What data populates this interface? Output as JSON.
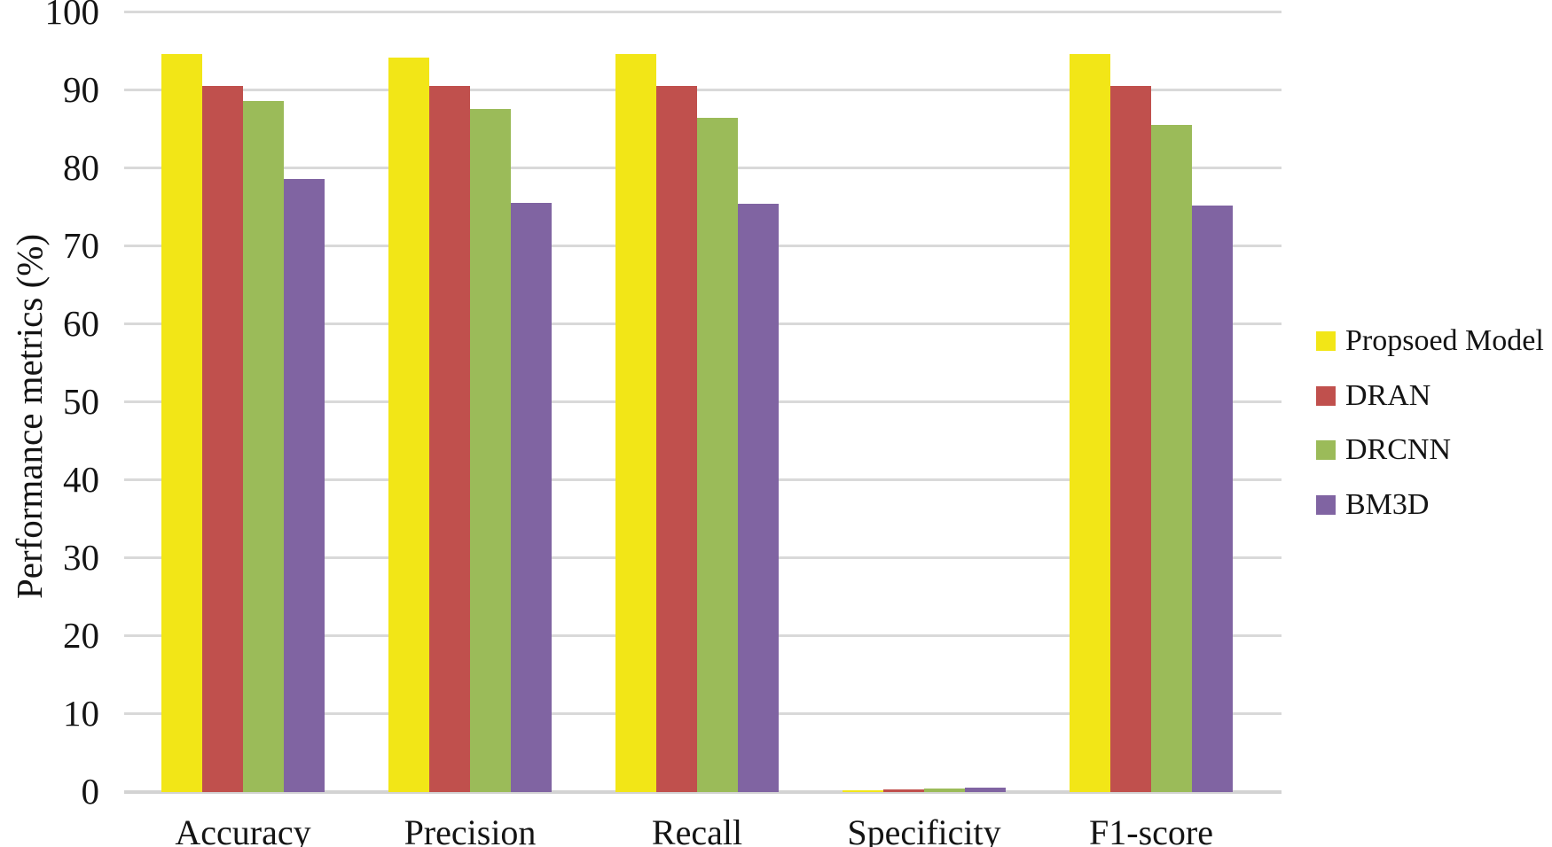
{
  "chart_data": {
    "type": "bar",
    "title": "",
    "xlabel": "",
    "ylabel": "Performance metrics (%)",
    "ylim": [
      0,
      100
    ],
    "yticks": [
      0,
      10,
      20,
      30,
      40,
      50,
      60,
      70,
      80,
      90,
      100
    ],
    "grid": "horizontal",
    "legend_position": "right",
    "categories": [
      "Accuracy",
      "Precision",
      "Recall",
      "Specificity",
      "F1-score"
    ],
    "series": [
      {
        "name": "Propsoed Model",
        "color": "#f2e617",
        "values": [
          94.5,
          94.1,
          94.5,
          0.15,
          94.6
        ]
      },
      {
        "name": "DRAN",
        "color": "#c0504d",
        "values": [
          90.5,
          90.4,
          90.5,
          0.2,
          90.4
        ]
      },
      {
        "name": "DRCNN",
        "color": "#9bbb59",
        "values": [
          88.5,
          87.5,
          86.4,
          0.3,
          85.4
        ]
      },
      {
        "name": "BM3D",
        "color": "#8064a2",
        "values": [
          78.5,
          75.5,
          75.3,
          0.45,
          75.1
        ]
      }
    ],
    "colors": {
      "gridline": "#d9d9d9",
      "axis_line": "#d3d3d3",
      "text": "#141414",
      "background": "#ffffff"
    }
  }
}
